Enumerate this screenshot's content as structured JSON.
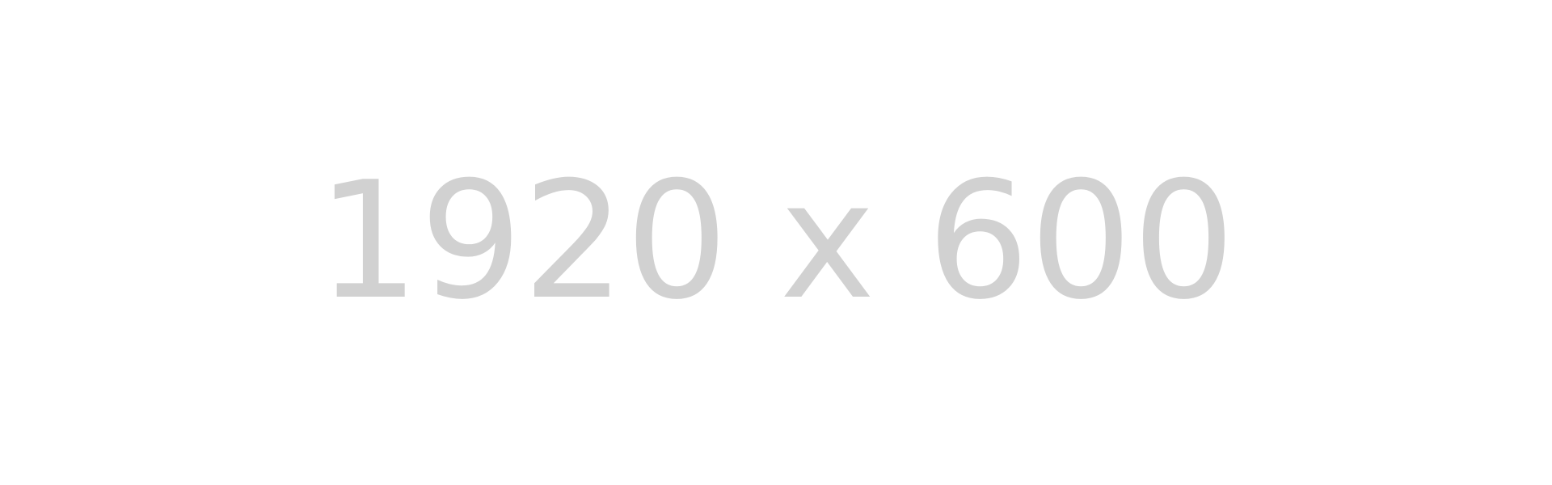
{
  "placeholder": {
    "label": "1920 x 600",
    "text_color": "#d1d1d1",
    "background_color": "#ffffff"
  }
}
